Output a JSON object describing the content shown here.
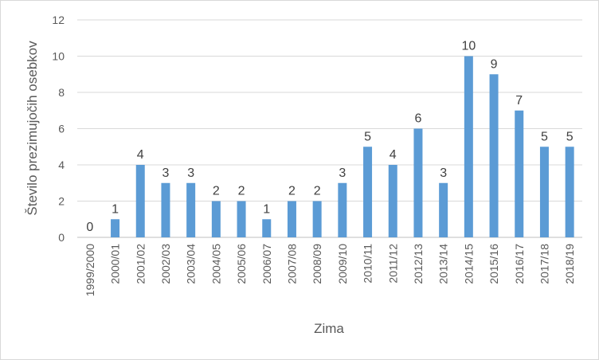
{
  "chart_data": {
    "type": "bar",
    "xlabel": "Zima",
    "ylabel": "Število prezimujočih osebkov",
    "ylim": [
      0,
      12
    ],
    "yticks": [
      0,
      2,
      4,
      6,
      8,
      10,
      12
    ],
    "grid": true,
    "legend": "none",
    "bar_color": "#5b9bd5",
    "categories": [
      "1999/2000",
      "2000/01",
      "2001/02",
      "2002/03",
      "2003/04",
      "2004/05",
      "2005/06",
      "2006/07",
      "2007/08",
      "2008/09",
      "2009/10",
      "2010/11",
      "2011/12",
      "2012/13",
      "2013/14",
      "2014/15",
      "2015/16",
      "2016/17",
      "2017/18",
      "2018/19"
    ],
    "values": [
      0,
      1,
      4,
      3,
      3,
      2,
      2,
      1,
      2,
      2,
      3,
      5,
      4,
      6,
      3,
      10,
      9,
      7,
      5,
      5
    ],
    "data_labels": [
      "0",
      "1",
      "4",
      "3",
      "3",
      "2",
      "2",
      "1",
      "2",
      "2",
      "3",
      "5",
      "4",
      "6",
      "3",
      "10",
      "9",
      "7",
      "5",
      "5"
    ],
    "ytick_labels": [
      "0",
      "2",
      "4",
      "6",
      "8",
      "10",
      "12"
    ]
  }
}
